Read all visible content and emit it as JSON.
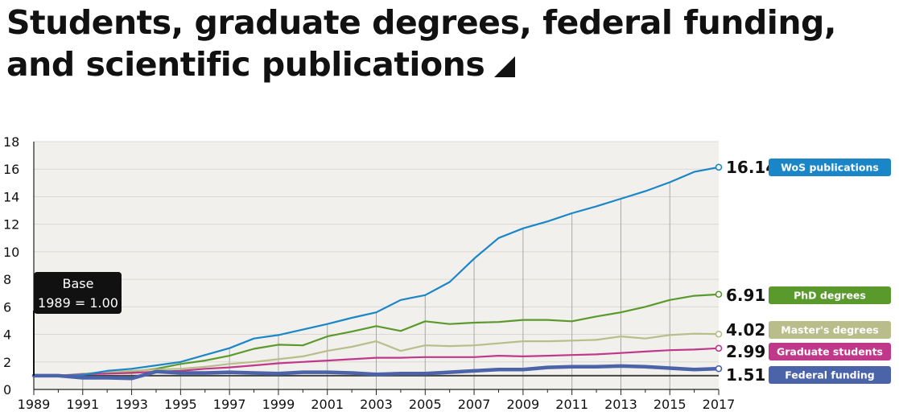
{
  "title": "Students, graduate degrees, federal funding, and scientific publications",
  "chart_data": {
    "type": "line",
    "title": "Students, graduate degrees, federal funding, and scientific publications",
    "xlabel": "",
    "ylabel": "",
    "xlim": [
      1989,
      2017
    ],
    "ylim": [
      0,
      18
    ],
    "x_ticks": [
      1989,
      1991,
      1993,
      1995,
      1997,
      1999,
      2001,
      2003,
      2005,
      2007,
      2009,
      2011,
      2013,
      2015,
      2017
    ],
    "y_ticks": [
      0,
      2,
      4,
      6,
      8,
      10,
      12,
      14,
      16,
      18
    ],
    "grid": "horizontal",
    "baseline": 1.0,
    "annotation": {
      "line1": "Base",
      "line2": "1989 = 1.00",
      "x": 1989
    },
    "x": [
      1989,
      1990,
      1991,
      1992,
      1993,
      1994,
      1995,
      1996,
      1997,
      1998,
      1999,
      2000,
      2001,
      2002,
      2003,
      2004,
      2005,
      2006,
      2007,
      2008,
      2009,
      2010,
      2011,
      2012,
      2013,
      2014,
      2015,
      2016,
      2017
    ],
    "series": [
      {
        "name": "WoS publications",
        "color": "#1a86c8",
        "end_label": "16.14",
        "values": [
          1.0,
          1.0,
          1.05,
          1.35,
          1.5,
          1.75,
          2.0,
          2.5,
          3.0,
          3.7,
          3.95,
          4.35,
          4.75,
          5.2,
          5.6,
          6.5,
          6.85,
          7.8,
          9.5,
          11.0,
          11.7,
          12.2,
          12.8,
          13.3,
          13.85,
          14.4,
          15.05,
          15.8,
          16.14
        ]
      },
      {
        "name": "PhD degrees",
        "color": "#5a9a2c",
        "end_label": "6.91",
        "values": [
          1.0,
          1.0,
          1.1,
          1.2,
          1.3,
          1.5,
          1.85,
          2.1,
          2.45,
          2.95,
          3.25,
          3.2,
          3.85,
          4.2,
          4.6,
          4.25,
          4.95,
          4.75,
          4.85,
          4.9,
          5.05,
          5.05,
          4.95,
          5.3,
          5.6,
          6.0,
          6.5,
          6.8,
          6.91
        ]
      },
      {
        "name": "Master's degrees",
        "color": "#b8bd8a",
        "end_label": "4.02",
        "values": [
          1.0,
          1.0,
          1.15,
          1.25,
          1.35,
          1.45,
          1.5,
          1.65,
          1.85,
          2.0,
          2.2,
          2.4,
          2.8,
          3.1,
          3.5,
          2.8,
          3.2,
          3.15,
          3.2,
          3.35,
          3.5,
          3.5,
          3.55,
          3.6,
          3.85,
          3.7,
          3.95,
          4.05,
          4.02
        ]
      },
      {
        "name": "Graduate students",
        "color": "#c0388a",
        "end_label": "2.99",
        "values": [
          1.0,
          1.0,
          1.1,
          1.15,
          1.2,
          1.3,
          1.35,
          1.5,
          1.6,
          1.75,
          1.9,
          2.0,
          2.1,
          2.2,
          2.3,
          2.3,
          2.35,
          2.35,
          2.35,
          2.45,
          2.4,
          2.45,
          2.5,
          2.55,
          2.65,
          2.75,
          2.85,
          2.9,
          2.99
        ]
      },
      {
        "name": "Federal funding",
        "color": "#4b63a8",
        "end_label": "1.51",
        "values": [
          1.0,
          1.0,
          0.85,
          0.85,
          0.8,
          1.3,
          1.2,
          1.2,
          1.25,
          1.2,
          1.15,
          1.25,
          1.25,
          1.2,
          1.1,
          1.15,
          1.15,
          1.25,
          1.35,
          1.45,
          1.45,
          1.6,
          1.65,
          1.65,
          1.7,
          1.65,
          1.55,
          1.45,
          1.51
        ]
      }
    ]
  }
}
